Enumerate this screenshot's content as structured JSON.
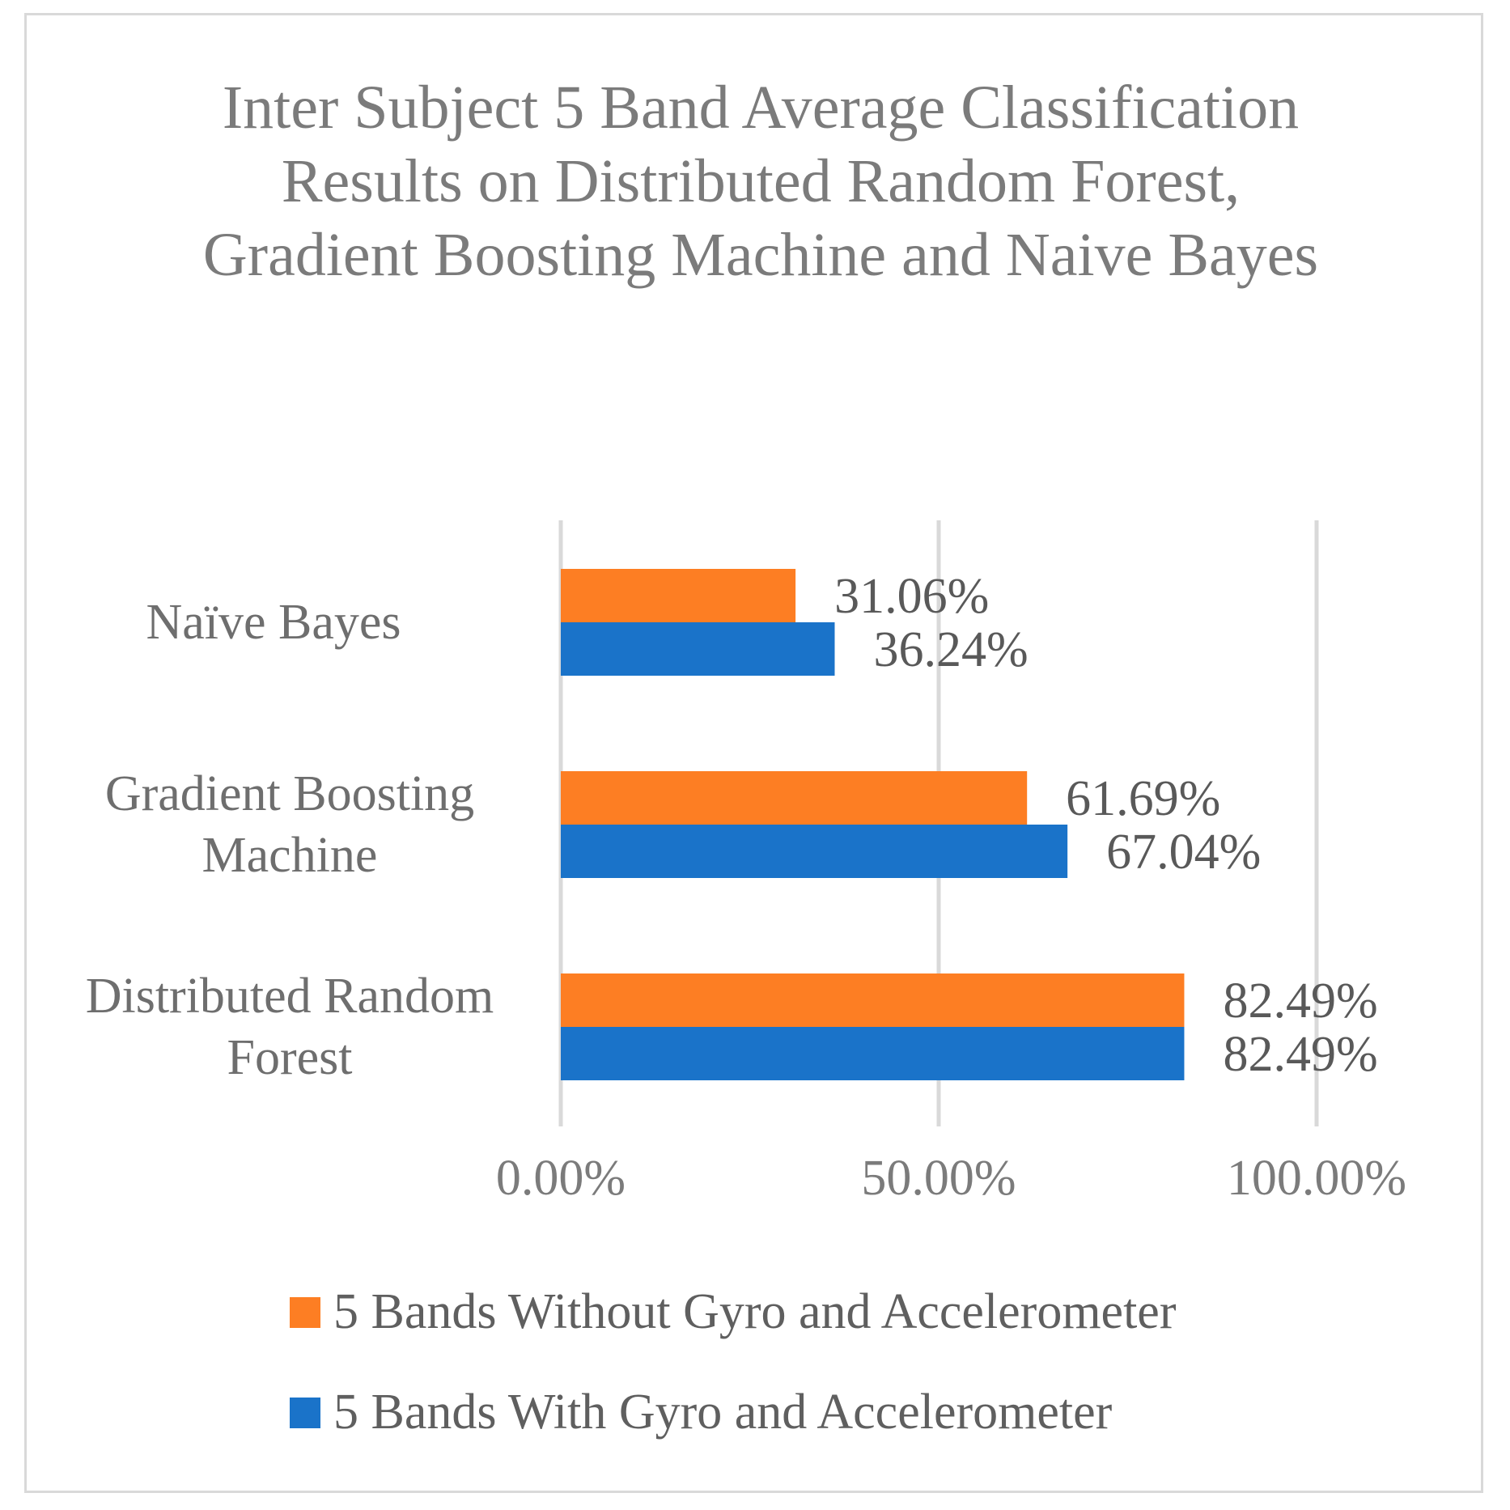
{
  "chart_data": {
    "type": "bar",
    "orientation": "horizontal",
    "title": "Inter Subject 5 Band Average Classification Results on Distributed Random Forest, Gradient Boosting Machine and Naive Bayes",
    "categories": [
      "Naïve Bayes",
      "Gradient Boosting Machine",
      "Distributed Random Forest"
    ],
    "series": [
      {
        "name": "5 Bands Without Gyro and Accelerometer",
        "color": "#fd7e23",
        "values": [
          31.06,
          61.69,
          82.49
        ],
        "labels": [
          "31.06%",
          "61.69%",
          "82.49%"
        ]
      },
      {
        "name": "5 Bands With Gyro and Accelerometer",
        "color": "#1a73c9",
        "values": [
          36.24,
          67.04,
          82.49
        ],
        "labels": [
          "36.24%",
          "67.04%",
          "82.49%"
        ]
      }
    ],
    "xlim": [
      0,
      100
    ],
    "xticks": [
      0,
      50,
      100
    ],
    "xtick_labels": [
      "0.00%",
      "50.00%",
      "100.00%"
    ],
    "grid": true,
    "legend_position": "bottom",
    "xlabel": "",
    "ylabel": ""
  }
}
